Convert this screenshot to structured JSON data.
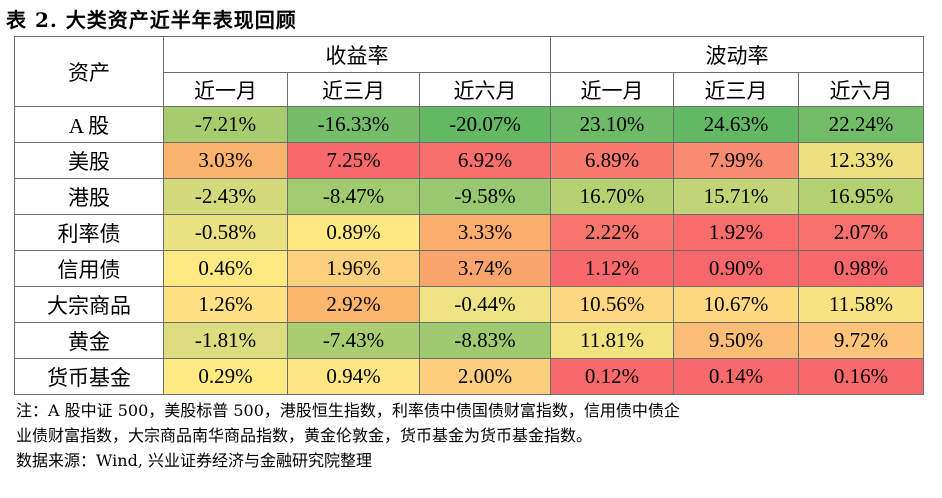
{
  "title": "表 2. 大类资产近半年表现回顾",
  "header": {
    "asset_label": "资产",
    "group_return": "收益率",
    "group_volatility": "波动率",
    "periods": [
      "近一月",
      "近三月",
      "近六月",
      "近一月",
      "近三月",
      "近六月"
    ]
  },
  "rows": [
    {
      "asset": "A 股",
      "cells": [
        {
          "text": "-7.21%",
          "color": "#a6cc6d"
        },
        {
          "text": "-16.33%",
          "color": "#76bd69"
        },
        {
          "text": "-20.07%",
          "color": "#63b863"
        },
        {
          "text": "23.10%",
          "color": "#6dbb67"
        },
        {
          "text": "24.63%",
          "color": "#63b863"
        },
        {
          "text": "22.24%",
          "color": "#72bc68"
        }
      ]
    },
    {
      "asset": "美股",
      "cells": [
        {
          "text": "3.03%",
          "color": "#f9b36c"
        },
        {
          "text": "7.25%",
          "color": "#f8696b"
        },
        {
          "text": "6.92%",
          "color": "#f86f6c"
        },
        {
          "text": "6.89%",
          "color": "#f8796e"
        },
        {
          "text": "7.99%",
          "color": "#f98b70"
        },
        {
          "text": "12.33%",
          "color": "#eddf7e"
        }
      ]
    },
    {
      "asset": "港股",
      "cells": [
        {
          "text": "-2.43%",
          "color": "#d2da7b"
        },
        {
          "text": "-8.47%",
          "color": "#a0cb6f"
        },
        {
          "text": "-9.58%",
          "color": "#98c86f"
        },
        {
          "text": "16.70%",
          "color": "#b6d172"
        },
        {
          "text": "15.71%",
          "color": "#c2d576"
        },
        {
          "text": "16.95%",
          "color": "#b4d172"
        }
      ]
    },
    {
      "asset": "利率债",
      "cells": [
        {
          "text": "-0.58%",
          "color": "#eae282"
        },
        {
          "text": "0.89%",
          "color": "#fde882"
        },
        {
          "text": "3.33%",
          "color": "#fbad6d"
        },
        {
          "text": "2.22%",
          "color": "#f8756d"
        },
        {
          "text": "1.92%",
          "color": "#f86d6c"
        },
        {
          "text": "2.07%",
          "color": "#f8716c"
        }
      ]
    },
    {
      "asset": "信用债",
      "cells": [
        {
          "text": "0.46%",
          "color": "#fee983"
        },
        {
          "text": "1.96%",
          "color": "#fcd17d"
        },
        {
          "text": "3.74%",
          "color": "#faa56c"
        },
        {
          "text": "1.12%",
          "color": "#f8696b"
        },
        {
          "text": "0.90%",
          "color": "#f8676b"
        },
        {
          "text": "0.98%",
          "color": "#f8676b"
        }
      ]
    },
    {
      "asset": "大宗商品",
      "cells": [
        {
          "text": "1.26%",
          "color": "#fde182"
        },
        {
          "text": "2.92%",
          "color": "#fbb66d"
        },
        {
          "text": "-0.44%",
          "color": "#eee483"
        },
        {
          "text": "10.56%",
          "color": "#fed880"
        },
        {
          "text": "10.67%",
          "color": "#fed980"
        },
        {
          "text": "11.58%",
          "color": "#f7e381"
        }
      ]
    },
    {
      "asset": "黄金",
      "cells": [
        {
          "text": "-1.81%",
          "color": "#dcdd7e"
        },
        {
          "text": "-7.43%",
          "color": "#a9cd70"
        },
        {
          "text": "-8.83%",
          "color": "#9fca6f"
        },
        {
          "text": "11.81%",
          "color": "#f3e280"
        },
        {
          "text": "9.50%",
          "color": "#fcbd77"
        },
        {
          "text": "9.72%",
          "color": "#fdc47a"
        }
      ]
    },
    {
      "asset": "货币基金",
      "cells": [
        {
          "text": "0.29%",
          "color": "#fee983"
        },
        {
          "text": "0.94%",
          "color": "#fde683"
        },
        {
          "text": "2.00%",
          "color": "#fcce7d"
        },
        {
          "text": "0.12%",
          "color": "#f8696b"
        },
        {
          "text": "0.14%",
          "color": "#f8696b"
        },
        {
          "text": "0.16%",
          "color": "#f8696b"
        }
      ]
    }
  ],
  "notes": {
    "line1": "注：A 股中证 500，美股标普 500，港股恒生指数，利率债中债国债财富指数，信用债中债企",
    "line2": "业债财富指数，大宗商品南华商品指数，黄金伦敦金，货币基金为货币基金指数。",
    "source": "数据来源：Wind, 兴业证券经济与金融研究院整理"
  }
}
